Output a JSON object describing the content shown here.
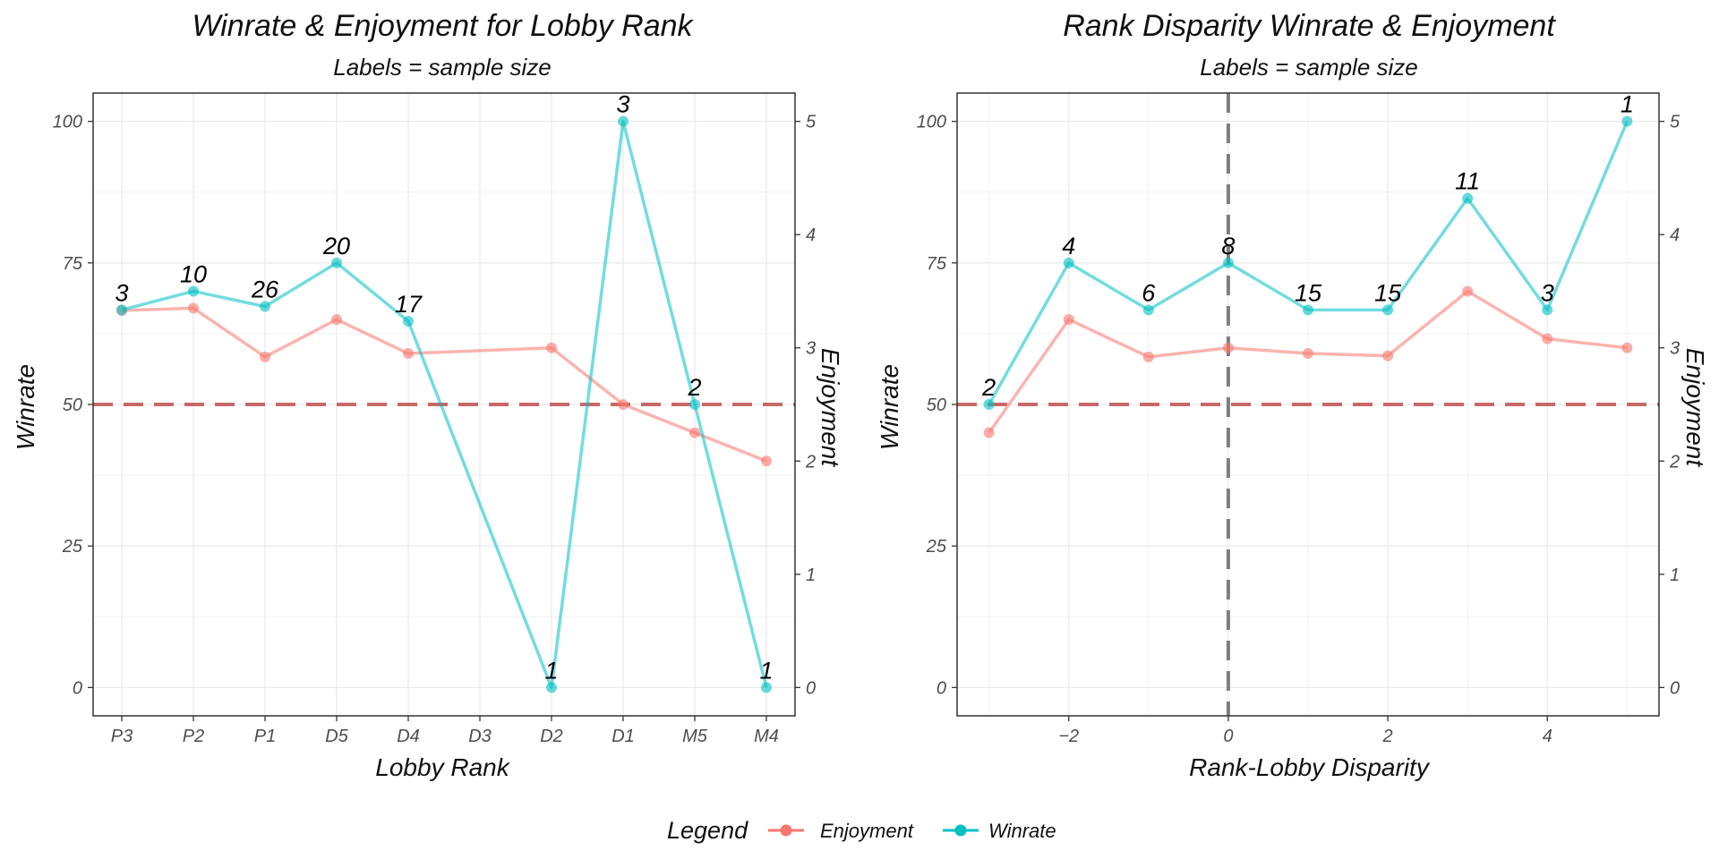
{
  "chart_data": [
    {
      "type": "line",
      "title": "Winrate & Enjoyment for Lobby Rank",
      "subtitle": "Labels = sample size",
      "xlabel": "Lobby Rank",
      "ylabel": "Winrate",
      "y2label": "Enjoyment",
      "categories": [
        "P3",
        "P2",
        "P1",
        "D5",
        "D4",
        "D3",
        "D2",
        "D1",
        "M5",
        "M4"
      ],
      "ylim": [
        -5,
        105
      ],
      "yticks": [
        0,
        25,
        50,
        75,
        100
      ],
      "y2lim": [
        -0.25,
        5.25
      ],
      "y2ticks": [
        0,
        1,
        2,
        3,
        4,
        5
      ],
      "hline": 50,
      "grid": true,
      "series": [
        {
          "name": "Enjoyment",
          "axis": "right",
          "color": "#F8766D",
          "points": [
            {
              "x": "P3",
              "y": 3.33
            },
            {
              "x": "P2",
              "y": 3.35
            },
            {
              "x": "P1",
              "y": 2.92
            },
            {
              "x": "D5",
              "y": 3.25
            },
            {
              "x": "D4",
              "y": 2.95
            },
            {
              "x": "D2",
              "y": 3.0
            },
            {
              "x": "D1",
              "y": 2.5
            },
            {
              "x": "M5",
              "y": 2.25
            },
            {
              "x": "M4",
              "y": 2.0
            }
          ]
        },
        {
          "name": "Winrate",
          "axis": "left",
          "color": "#00BFC4",
          "points": [
            {
              "x": "P3",
              "y": 66.7,
              "label": "3"
            },
            {
              "x": "P2",
              "y": 70,
              "label": "10"
            },
            {
              "x": "P1",
              "y": 67.3,
              "label": "26"
            },
            {
              "x": "D5",
              "y": 75,
              "label": "20"
            },
            {
              "x": "D4",
              "y": 64.7,
              "label": "17"
            },
            {
              "x": "D2",
              "y": 0,
              "label": "1"
            },
            {
              "x": "D1",
              "y": 100,
              "label": "3"
            },
            {
              "x": "M5",
              "y": 50,
              "label": "2"
            },
            {
              "x": "M4",
              "y": 0,
              "label": "1"
            }
          ]
        }
      ]
    },
    {
      "type": "line",
      "title": "Rank Disparity Winrate & Enjoyment",
      "subtitle": "Labels = sample size",
      "xlabel": "Rank-Lobby Disparity",
      "ylabel": "Winrate",
      "y2label": "Enjoyment",
      "xlim": [
        -3.4,
        5.4
      ],
      "xticks": [
        -2,
        0,
        2,
        4
      ],
      "ylim": [
        -5,
        105
      ],
      "yticks": [
        0,
        25,
        50,
        75,
        100
      ],
      "y2lim": [
        -0.25,
        5.25
      ],
      "y2ticks": [
        0,
        1,
        2,
        3,
        4,
        5
      ],
      "hline": 50,
      "vline": 0,
      "grid": true,
      "series": [
        {
          "name": "Enjoyment",
          "axis": "right",
          "color": "#F8766D",
          "points": [
            {
              "x": -3,
              "y": 2.25
            },
            {
              "x": -2,
              "y": 3.25
            },
            {
              "x": -1,
              "y": 2.92
            },
            {
              "x": 0,
              "y": 3.0
            },
            {
              "x": 1,
              "y": 2.95
            },
            {
              "x": 2,
              "y": 2.93
            },
            {
              "x": 3,
              "y": 3.5
            },
            {
              "x": 4,
              "y": 3.08
            },
            {
              "x": 5,
              "y": 3.0
            }
          ]
        },
        {
          "name": "Winrate",
          "axis": "left",
          "color": "#00BFC4",
          "points": [
            {
              "x": -3,
              "y": 50,
              "label": "2"
            },
            {
              "x": -2,
              "y": 75,
              "label": "4"
            },
            {
              "x": -1,
              "y": 66.7,
              "label": "6"
            },
            {
              "x": 0,
              "y": 75,
              "label": "8"
            },
            {
              "x": 1,
              "y": 66.7,
              "label": "15"
            },
            {
              "x": 2,
              "y": 66.7,
              "label": "15"
            },
            {
              "x": 3,
              "y": 86.4,
              "label": "11"
            },
            {
              "x": 4,
              "y": 66.7,
              "label": "3"
            },
            {
              "x": 5,
              "y": 100,
              "label": "1"
            }
          ]
        }
      ]
    }
  ],
  "legend": {
    "title": "Legend",
    "position": "bottom",
    "items": [
      {
        "label": "Enjoyment",
        "color": "#F8766D"
      },
      {
        "label": "Winrate",
        "color": "#00BFC4"
      }
    ]
  }
}
